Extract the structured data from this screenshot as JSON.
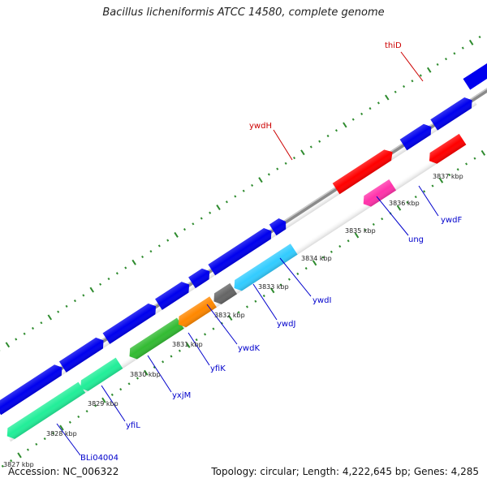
{
  "title": "Bacillus licheniformis ATCC 14580, complete genome",
  "footer": {
    "accession": "Accession: NC_006322",
    "stats": "Topology: circular; Length: 4,222,645 bp; Genes: 4,285"
  },
  "colors": {
    "backbone": "#888888",
    "tick": "#2e8b2e",
    "forward_label": "#cc0000",
    "reverse_label": "#0000cc"
  },
  "kbp_labels": [
    "3827 kbp",
    "3828 kbp",
    "3829 kbp",
    "3830 kbp",
    "3831 kbp",
    "3832 kbp",
    "3833 kbp",
    "3834 kbp",
    "3835 kbp",
    "3836 kbp",
    "3837 kbp"
  ],
  "gene_labels": [
    "thiD",
    "ywdH",
    "ywdF",
    "ung",
    "ywdI",
    "ywdJ",
    "ywdK",
    "yfiK",
    "yxjM",
    "yfiL",
    "BLi04004"
  ],
  "gene_colors": {
    "thiD": "#ff0000",
    "ywdH": "#ff0000",
    "ung": "#ff33aa",
    "ywdI": "#33ccff",
    "ywdK": "#666666",
    "yfiK": "#ff8800",
    "yxjM": "#33bb33",
    "yfiL": "#22ee99",
    "BLi04004": "#22ee99",
    "other": "#0000ee"
  }
}
